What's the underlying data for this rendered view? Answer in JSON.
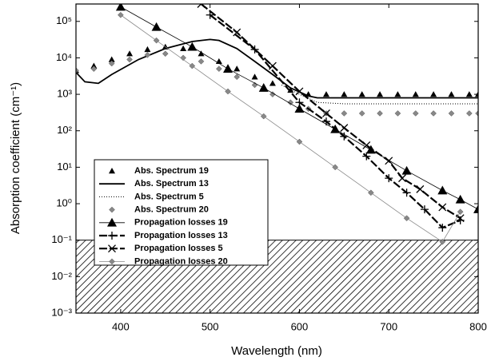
{
  "chart_data": {
    "type": "scatter",
    "log_y": true,
    "xlabel": "Wavelength (nm)",
    "ylabel": "Absorption coefficient (cm⁻¹)",
    "xlim": [
      350,
      800
    ],
    "xticks": [
      400,
      500,
      600,
      700,
      800
    ],
    "ylim": [
      0.001,
      300000
    ],
    "yticks": [
      {
        "value": 0.001,
        "label": "10⁻³"
      },
      {
        "value": 0.01,
        "label": "10⁻²"
      },
      {
        "value": 0.1,
        "label": "10⁻¹"
      },
      {
        "value": 1,
        "label": "10⁰"
      },
      {
        "value": 10,
        "label": "10¹"
      },
      {
        "value": 100,
        "label": "10²"
      },
      {
        "value": 1000,
        "label": "10³"
      },
      {
        "value": 10000,
        "label": "10⁴"
      },
      {
        "value": 100000,
        "label": "10⁵"
      }
    ],
    "hatch_band": [
      0.001,
      0.1
    ],
    "legend": "lower left",
    "series": [
      {
        "name": "Abs. Spectrum 19",
        "color": "#000000",
        "marker": "small-triangle",
        "line": "none",
        "x": [
          350,
          370,
          390,
          410,
          430,
          450,
          470,
          490,
          510,
          530,
          550,
          570,
          590,
          610,
          630,
          650,
          670,
          690,
          710,
          730,
          750,
          770,
          790,
          800
        ],
        "values": [
          4500,
          6000,
          9000,
          13000,
          17000,
          20000,
          18000,
          13000,
          8000,
          5000,
          3000,
          2000,
          1300,
          1000,
          1000,
          1000,
          1000,
          1000,
          1000,
          1000,
          1000,
          1000,
          1000,
          1000
        ]
      },
      {
        "name": "Abs. Spectrum 13",
        "color": "#000000",
        "marker": "none",
        "line": "solid",
        "x": [
          350,
          360,
          375,
          390,
          420,
          450,
          480,
          500,
          510,
          530,
          550,
          570,
          590,
          610,
          620,
          650,
          700,
          750,
          800
        ],
        "values": [
          4000,
          2200,
          2000,
          3500,
          9000,
          18000,
          28000,
          32000,
          30000,
          18000,
          8000,
          3500,
          1500,
          900,
          800,
          800,
          800,
          800,
          800
        ]
      },
      {
        "name": "Abs. Spectrum 5",
        "color": "#000000",
        "marker": "none",
        "line": "dotted",
        "x": [
          580,
          600,
          620,
          650,
          700,
          750,
          800
        ],
        "values": [
          1800,
          1000,
          600,
          550,
          550,
          550,
          550
        ]
      },
      {
        "name": "Abs. Spectrum 20",
        "color": "#888888",
        "marker": "diamond",
        "line": "none",
        "x": [
          350,
          370,
          390,
          410,
          430,
          450,
          470,
          490,
          510,
          530,
          550,
          570,
          590,
          610,
          630,
          650,
          670,
          690,
          710,
          730,
          750,
          770,
          790,
          800
        ],
        "values": [
          4500,
          5000,
          7000,
          9000,
          12000,
          13000,
          10000,
          8000,
          5000,
          3000,
          1800,
          1000,
          600,
          400,
          300,
          300,
          300,
          300,
          300,
          300,
          300,
          300,
          300,
          300
        ]
      },
      {
        "name": "Propagation losses 19",
        "color": "#000000",
        "marker": "triangle",
        "line": "thin",
        "x": [
          400,
          440,
          480,
          520,
          560,
          600,
          640,
          680,
          720,
          760,
          780,
          800
        ],
        "values": [
          250000,
          70000,
          20000,
          5000,
          1500,
          400,
          110,
          30,
          8,
          2.3,
          1.3,
          0.7
        ]
      },
      {
        "name": "Propagation losses 13",
        "color": "#000000",
        "marker": "plus",
        "line": "dashed",
        "x": [
          500,
          550,
          600,
          630,
          650,
          675,
          700,
          720,
          740,
          760,
          780
        ],
        "values": [
          150000,
          17000,
          600,
          180,
          70,
          20,
          5,
          2,
          0.7,
          0.22,
          0.35
        ]
      },
      {
        "name": "Propagation losses 5",
        "color": "#000000",
        "marker": "cross",
        "line": "dashed",
        "x": [
          490,
          530,
          570,
          600,
          630,
          650,
          675,
          700,
          715,
          735,
          760,
          780
        ],
        "values": [
          300000,
          50000,
          6000,
          1200,
          300,
          120,
          40,
          15,
          5,
          2.5,
          0.8,
          0.4
        ]
      },
      {
        "name": "Propagation losses 20",
        "color": "#888888",
        "marker": "diamond",
        "line": "thin",
        "x": [
          400,
          440,
          480,
          520,
          560,
          600,
          640,
          680,
          720,
          760,
          780
        ],
        "values": [
          150000,
          30000,
          6000,
          1200,
          250,
          50,
          10,
          2,
          0.4,
          0.09,
          0.6
        ]
      }
    ]
  }
}
